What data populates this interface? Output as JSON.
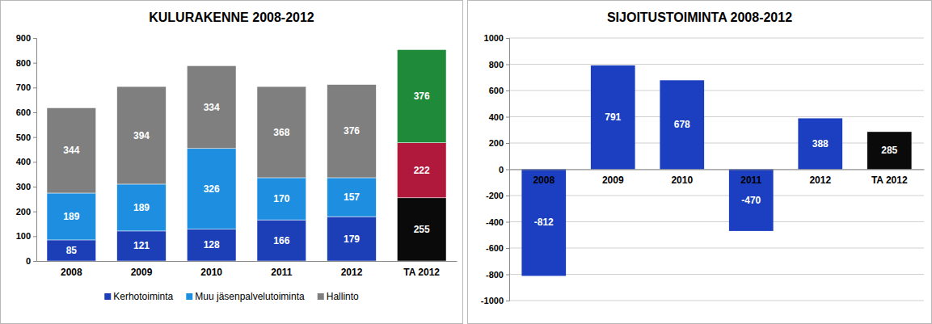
{
  "chart_data": [
    {
      "type": "bar",
      "title": "KULURAKENNE 2008-2012",
      "stacked": true,
      "data_labels": true,
      "grid": false,
      "legend": "bottom",
      "categories": [
        "2008",
        "2009",
        "2010",
        "2011",
        "2012",
        "TA 2012"
      ],
      "ylim": [
        0,
        900
      ],
      "yticks": [
        0,
        100,
        200,
        300,
        400,
        500,
        600,
        700,
        800,
        900
      ],
      "series": [
        {
          "name": "Kerhotoiminta",
          "color": "#1c3fb8",
          "colors": [
            "#1c3fb8",
            "#1c3fb8",
            "#1c3fb8",
            "#1c3fb8",
            "#1c3fb8",
            "#0a0a0a"
          ],
          "values": [
            85,
            121,
            128,
            166,
            179,
            255
          ]
        },
        {
          "name": "Muu jäsenpalvelutoiminta",
          "color": "#1e8fe0",
          "colors": [
            "#1e8fe0",
            "#1e8fe0",
            "#1e8fe0",
            "#1e8fe0",
            "#1e8fe0",
            "#b0193c"
          ],
          "values": [
            189,
            189,
            326,
            170,
            157,
            222
          ]
        },
        {
          "name": "Hallinto",
          "color": "#7f7f7f",
          "colors": [
            "#7f7f7f",
            "#7f7f7f",
            "#7f7f7f",
            "#7f7f7f",
            "#7f7f7f",
            "#1e8a3a"
          ],
          "values": [
            344,
            394,
            334,
            368,
            376,
            376
          ]
        }
      ]
    },
    {
      "type": "bar",
      "title": "SIJOITUSTOIMINTA 2008-2012",
      "data_labels": true,
      "grid": true,
      "categories": [
        "2008",
        "2009",
        "2010",
        "2011",
        "2012",
        "TA 2012"
      ],
      "values": [
        -812,
        791,
        678,
        -470,
        388,
        285
      ],
      "colors": [
        "#1b3fc0",
        "#1b3fc0",
        "#1b3fc0",
        "#1b3fc0",
        "#1b3fc0",
        "#0a0a0a"
      ],
      "ylim": [
        -1000,
        1000
      ],
      "yticks": [
        -1000,
        -800,
        -600,
        -400,
        -200,
        0,
        200,
        400,
        600,
        800,
        1000
      ]
    }
  ]
}
